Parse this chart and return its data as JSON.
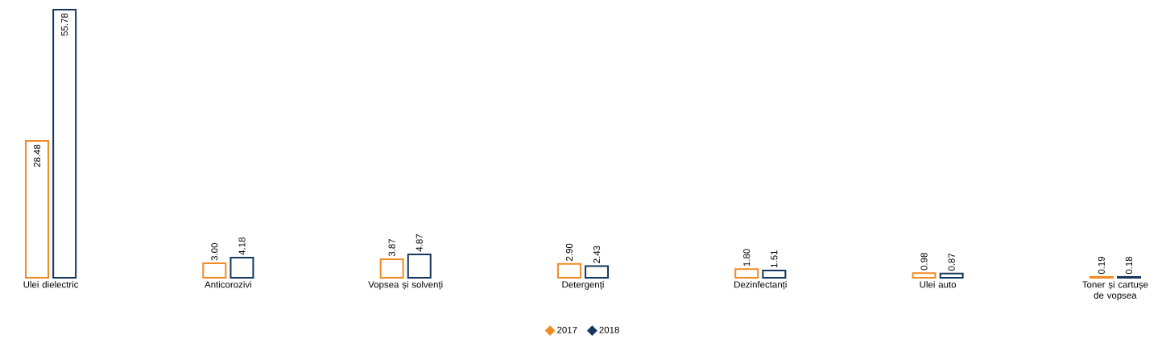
{
  "chart_data": {
    "type": "bar",
    "categories": [
      "Ulei dielectric",
      "Anticorozivi",
      "Vopsea și solvenți",
      "Detergenți",
      "Dezinfectanți",
      "Ulei auto",
      "Toner și cartușe de vopsea"
    ],
    "series": [
      {
        "name": "2017",
        "color": "#f28a24",
        "values": [
          28.48,
          3.0,
          3.87,
          2.9,
          1.8,
          0.98,
          0.19
        ],
        "value_labels": [
          "28.48",
          "3.00",
          "3.87",
          "2.90",
          "1.80",
          "0.98",
          "0.19"
        ]
      },
      {
        "name": "2018",
        "color": "#15365e",
        "values": [
          55.78,
          4.18,
          4.87,
          2.43,
          1.51,
          0.87,
          0.18
        ],
        "value_labels": [
          "55.78",
          "4.18",
          "4.87",
          "2.43",
          "1.51",
          "0.87",
          "0.18"
        ]
      }
    ],
    "legend": "bottom",
    "grid": false
  }
}
